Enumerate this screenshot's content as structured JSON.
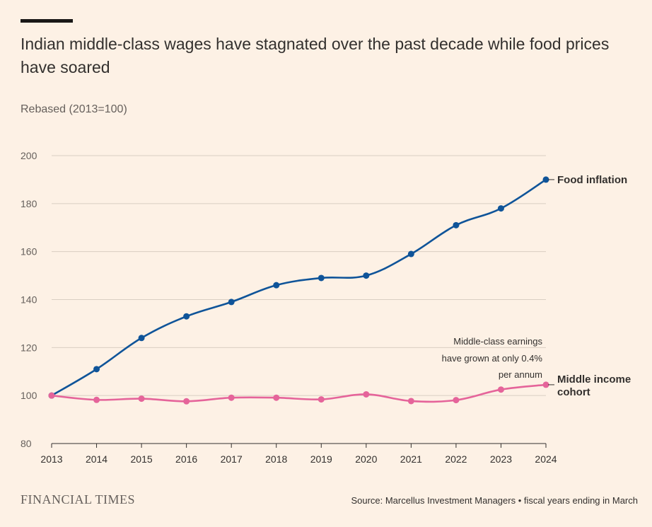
{
  "header": {
    "title": "Indian middle-class wages have stagnated over the past decade while food prices have soared",
    "subtitle": "Rebased (2013=100)"
  },
  "footer": {
    "brand": "FINANCIAL TIMES",
    "source": "Source: Marcellus Investment Managers • fiscal years ending in March"
  },
  "colors": {
    "background": "#fdf1e5",
    "food_inflation": "#0f5499",
    "middle_income": "#e5649a",
    "grid": "#d9cec2"
  },
  "chart_data": {
    "type": "line",
    "x": [
      "2013",
      "2014",
      "2015",
      "2016",
      "2017",
      "2018",
      "2019",
      "2020",
      "2021",
      "2022",
      "2023",
      "2024"
    ],
    "ylim": [
      80,
      200
    ],
    "yticks": [
      80,
      100,
      120,
      140,
      160,
      180,
      200
    ],
    "grid": true,
    "series": [
      {
        "name": "Food inflation",
        "color": "#0f5499",
        "values": [
          100,
          111,
          124,
          133,
          139,
          146,
          149,
          150,
          159,
          171,
          178,
          190
        ]
      },
      {
        "name": "Middle income cohort",
        "label_lines": [
          "Middle income",
          "cohort"
        ],
        "color": "#e5649a",
        "values": [
          100,
          98.2,
          98.7,
          97.6,
          99.1,
          99.1,
          98.4,
          100.5,
          97.7,
          98.1,
          102.5,
          104.5
        ]
      }
    ],
    "annotation": {
      "lines": [
        "Middle-class earnings",
        "have grown at only 0.4%",
        "per annum"
      ]
    }
  }
}
